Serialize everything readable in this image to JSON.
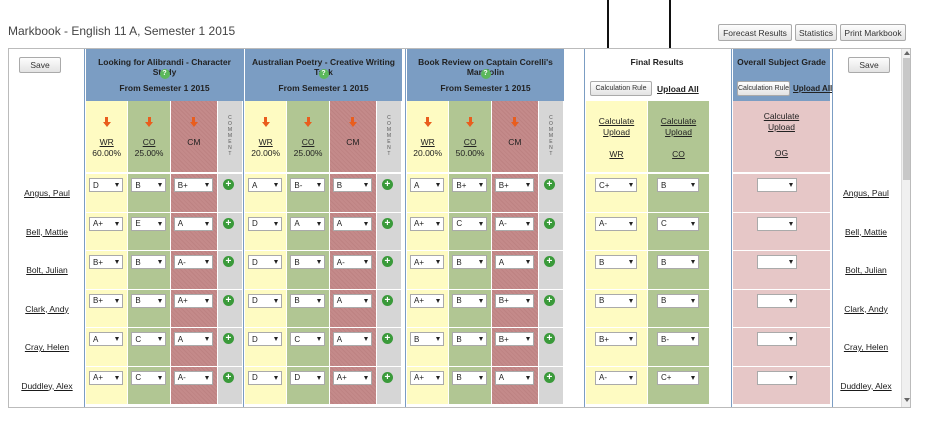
{
  "page": {
    "title": "Markbook - English 11 A, Semester 1 2015",
    "buttons": {
      "forecast": "Forecast Results",
      "statistics": "Statistics",
      "print": "Print Markbook",
      "save": "Save"
    }
  },
  "assessments": [
    {
      "title": "Looking for Alibrandi - Character Study",
      "from": "From Semester 1 2015",
      "criteria": [
        {
          "code": "WR",
          "weight": "60.00%"
        },
        {
          "code": "CO",
          "weight": "25.00%"
        },
        {
          "code": "CM",
          "weight": ""
        }
      ],
      "comment_label": "COMMENT"
    },
    {
      "title": "Australian Poetry - Creative Writing Task",
      "from": "From Semester 1 2015",
      "criteria": [
        {
          "code": "WR",
          "weight": "20.00%"
        },
        {
          "code": "CO",
          "weight": "25.00%"
        },
        {
          "code": "CM",
          "weight": ""
        }
      ],
      "comment_label": "COMMENT"
    },
    {
      "title": "Book Review on Captain Corelli's Mandolin",
      "from": "From Semester 1 2015",
      "criteria": [
        {
          "code": "WR",
          "weight": "20.00%"
        },
        {
          "code": "CO",
          "weight": "50.00%"
        },
        {
          "code": "CM",
          "weight": ""
        }
      ],
      "comment_label": "COMMENT"
    }
  ],
  "final_results": {
    "title": "Final Results",
    "calc_rule": "Calculation Rule",
    "upload_all": "Upload All",
    "columns": [
      {
        "calculate": "Calculate",
        "upload": "Upload",
        "code": "WR"
      },
      {
        "calculate": "Calculate",
        "upload": "Upload",
        "code": "CO"
      }
    ]
  },
  "overall": {
    "title": "Overall Subject Grade",
    "calc_rule": "Calculation Rule",
    "upload_all": "Upload All",
    "calculate": "Calculate",
    "upload": "Upload",
    "code": "OG"
  },
  "students": [
    {
      "name": "Angus, Paul",
      "grades": [
        [
          "D",
          "B",
          "B+"
        ],
        [
          "A",
          "B-",
          "B"
        ],
        [
          "A",
          "B+",
          "B+"
        ]
      ],
      "final": [
        "C+",
        "B"
      ],
      "overall": ""
    },
    {
      "name": "Bell, Mattie",
      "grades": [
        [
          "A+",
          "E",
          "A"
        ],
        [
          "D",
          "A",
          "A"
        ],
        [
          "A+",
          "C",
          "A-"
        ]
      ],
      "final": [
        "A-",
        "C"
      ],
      "overall": ""
    },
    {
      "name": "Bolt, Julian",
      "grades": [
        [
          "B+",
          "B",
          "A-"
        ],
        [
          "D",
          "B",
          "A-"
        ],
        [
          "A+",
          "B",
          "A"
        ]
      ],
      "final": [
        "B",
        "B"
      ],
      "overall": ""
    },
    {
      "name": "Clark, Andy",
      "grades": [
        [
          "B+",
          "B",
          "A+"
        ],
        [
          "D",
          "B",
          "A"
        ],
        [
          "A+",
          "B",
          "B+"
        ]
      ],
      "final": [
        "B",
        "B"
      ],
      "overall": ""
    },
    {
      "name": "Cray, Helen",
      "grades": [
        [
          "A",
          "C",
          "A"
        ],
        [
          "D",
          "C",
          "A"
        ],
        [
          "B",
          "B",
          "B+"
        ]
      ],
      "final": [
        "B+",
        "B-"
      ],
      "overall": ""
    },
    {
      "name": "Duddley, Alex",
      "grades": [
        [
          "A+",
          "C",
          "A-"
        ],
        [
          "D",
          "D",
          "A+"
        ],
        [
          "A+",
          "B",
          "A"
        ]
      ],
      "final": [
        "A-",
        "C+"
      ],
      "overall": ""
    }
  ]
}
